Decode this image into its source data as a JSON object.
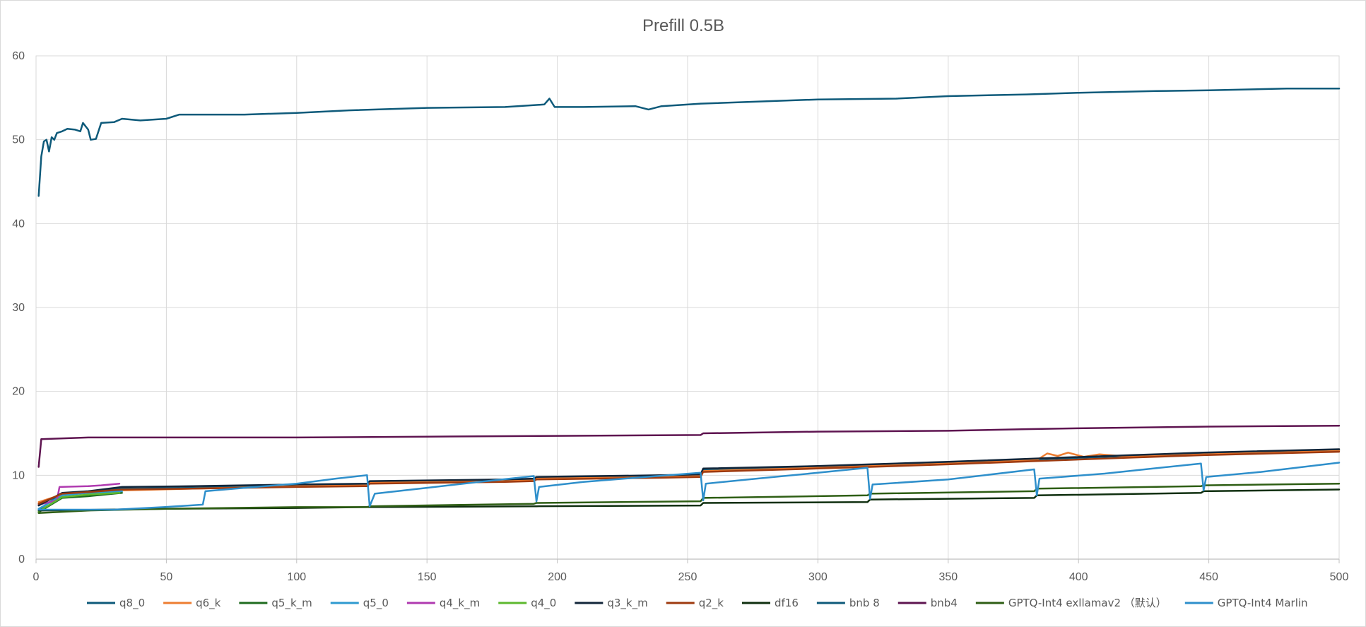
{
  "chart_data": {
    "type": "line",
    "title": "Prefill 0.5B",
    "xlabel": "",
    "ylabel": "",
    "xlim": [
      0,
      500
    ],
    "ylim": [
      0,
      60
    ],
    "x_ticks": [
      0,
      50,
      100,
      150,
      200,
      250,
      300,
      350,
      400,
      450,
      500
    ],
    "y_ticks": [
      0,
      10,
      20,
      30,
      40,
      50,
      60
    ],
    "grid": true,
    "legend_position": "bottom",
    "series": [
      {
        "name": "q8_0",
        "color": "#0E5A7A",
        "points": [
          [
            1,
            5.9
          ],
          [
            10,
            7.8
          ],
          [
            20,
            8.0
          ],
          [
            33,
            8.4
          ],
          [
            60,
            8.5
          ],
          [
            100,
            8.8
          ],
          [
            127,
            8.9
          ],
          [
            128,
            9.2
          ],
          [
            180,
            9.4
          ],
          [
            191,
            9.5
          ],
          [
            192,
            9.7
          ],
          [
            240,
            9.9
          ],
          [
            255,
            10.0
          ],
          [
            256,
            10.6
          ],
          [
            300,
            11.0
          ],
          [
            320,
            11.2
          ],
          [
            350,
            11.5
          ],
          [
            384,
            11.9
          ],
          [
            420,
            12.3
          ],
          [
            448,
            12.6
          ],
          [
            500,
            13.0
          ]
        ]
      },
      {
        "name": "q6_k",
        "color": "#ED7D31",
        "points": [
          [
            1,
            6.8
          ],
          [
            10,
            7.7
          ],
          [
            20,
            7.9
          ],
          [
            33,
            8.2
          ],
          [
            60,
            8.4
          ],
          [
            100,
            8.7
          ],
          [
            127,
            8.8
          ],
          [
            128,
            9.1
          ],
          [
            180,
            9.3
          ],
          [
            191,
            9.4
          ],
          [
            192,
            9.6
          ],
          [
            240,
            9.8
          ],
          [
            255,
            9.9
          ],
          [
            256,
            10.5
          ],
          [
            300,
            10.9
          ],
          [
            320,
            11.1
          ],
          [
            350,
            11.4
          ],
          [
            384,
            11.8
          ],
          [
            388,
            12.6
          ],
          [
            392,
            12.3
          ],
          [
            396,
            12.7
          ],
          [
            402,
            12.2
          ],
          [
            408,
            12.5
          ],
          [
            420,
            12.2
          ],
          [
            448,
            12.5
          ],
          [
            500,
            12.9
          ]
        ]
      },
      {
        "name": "q5_k_m",
        "color": "#1E6B1E",
        "points": [
          [
            1,
            5.6
          ],
          [
            10,
            7.3
          ],
          [
            20,
            7.5
          ],
          [
            33,
            7.9
          ]
        ]
      },
      {
        "name": "q5_0",
        "color": "#2E9AD0",
        "points": [
          [
            1,
            6.0
          ],
          [
            10,
            7.6
          ],
          [
            20,
            7.9
          ],
          [
            33,
            8.1
          ]
        ]
      },
      {
        "name": "q4_k_m",
        "color": "#B03AB0",
        "points": [
          [
            1,
            6.5
          ],
          [
            8,
            7.0
          ],
          [
            9,
            8.6
          ],
          [
            20,
            8.7
          ],
          [
            25,
            8.8
          ],
          [
            32,
            9.0
          ]
        ]
      },
      {
        "name": "q4_0",
        "color": "#5DB82E",
        "points": [
          [
            1,
            5.7
          ],
          [
            10,
            7.4
          ],
          [
            20,
            7.7
          ],
          [
            32,
            7.9
          ]
        ]
      },
      {
        "name": "q3_k_m",
        "color": "#12263A",
        "points": [
          [
            1,
            6.4
          ],
          [
            10,
            7.9
          ],
          [
            20,
            8.1
          ],
          [
            33,
            8.6
          ],
          [
            60,
            8.7
          ],
          [
            100,
            8.9
          ],
          [
            127,
            9.0
          ],
          [
            128,
            9.3
          ],
          [
            180,
            9.5
          ],
          [
            191,
            9.6
          ],
          [
            192,
            9.8
          ],
          [
            240,
            10.0
          ],
          [
            255,
            10.1
          ],
          [
            256,
            10.8
          ],
          [
            300,
            11.1
          ],
          [
            320,
            11.3
          ],
          [
            350,
            11.6
          ],
          [
            384,
            12.0
          ],
          [
            420,
            12.4
          ],
          [
            448,
            12.7
          ],
          [
            500,
            13.1
          ]
        ]
      },
      {
        "name": "q2_k",
        "color": "#9E3A0F",
        "points": [
          [
            1,
            6.6
          ],
          [
            10,
            7.8
          ],
          [
            20,
            8.0
          ],
          [
            33,
            8.3
          ],
          [
            60,
            8.4
          ],
          [
            100,
            8.6
          ],
          [
            127,
            8.7
          ],
          [
            128,
            9.0
          ],
          [
            180,
            9.2
          ],
          [
            191,
            9.3
          ],
          [
            192,
            9.5
          ],
          [
            240,
            9.7
          ],
          [
            255,
            9.8
          ],
          [
            256,
            10.4
          ],
          [
            300,
            10.8
          ],
          [
            320,
            11.0
          ],
          [
            350,
            11.3
          ],
          [
            384,
            11.7
          ],
          [
            420,
            12.1
          ],
          [
            448,
            12.4
          ],
          [
            500,
            12.8
          ]
        ]
      },
      {
        "name": "df16",
        "color": "#0F2F0F",
        "points": [
          [
            1,
            5.8
          ],
          [
            50,
            6.0
          ],
          [
            100,
            6.1
          ],
          [
            127,
            6.2
          ],
          [
            128,
            6.2
          ],
          [
            191,
            6.3
          ],
          [
            192,
            6.3
          ],
          [
            255,
            6.4
          ],
          [
            256,
            6.7
          ],
          [
            319,
            6.8
          ],
          [
            320,
            7.1
          ],
          [
            383,
            7.3
          ],
          [
            384,
            7.6
          ],
          [
            447,
            7.9
          ],
          [
            448,
            8.1
          ],
          [
            500,
            8.3
          ]
        ]
      },
      {
        "name": "bnb 8",
        "color": "#0E5A7A",
        "points": [
          [
            1,
            43.3
          ],
          [
            2,
            48.0
          ],
          [
            3,
            49.8
          ],
          [
            4,
            50.0
          ],
          [
            5,
            48.6
          ],
          [
            6,
            50.3
          ],
          [
            7,
            50.0
          ],
          [
            8,
            50.8
          ],
          [
            10,
            51.0
          ],
          [
            12,
            51.3
          ],
          [
            15,
            51.2
          ],
          [
            17,
            51.0
          ],
          [
            18,
            52.0
          ],
          [
            20,
            51.2
          ],
          [
            21,
            50.0
          ],
          [
            23,
            50.1
          ],
          [
            25,
            52.0
          ],
          [
            30,
            52.1
          ],
          [
            33,
            52.5
          ],
          [
            40,
            52.3
          ],
          [
            50,
            52.5
          ],
          [
            55,
            53.0
          ],
          [
            80,
            53.0
          ],
          [
            100,
            53.2
          ],
          [
            120,
            53.5
          ],
          [
            150,
            53.8
          ],
          [
            180,
            53.9
          ],
          [
            195,
            54.2
          ],
          [
            197,
            54.9
          ],
          [
            199,
            53.9
          ],
          [
            210,
            53.9
          ],
          [
            230,
            54.0
          ],
          [
            235,
            53.6
          ],
          [
            240,
            54.0
          ],
          [
            255,
            54.3
          ],
          [
            300,
            54.8
          ],
          [
            330,
            54.9
          ],
          [
            350,
            55.2
          ],
          [
            380,
            55.4
          ],
          [
            400,
            55.6
          ],
          [
            430,
            55.8
          ],
          [
            450,
            55.9
          ],
          [
            480,
            56.1
          ],
          [
            500,
            56.1
          ]
        ]
      },
      {
        "name": "bnb4",
        "color": "#5E1450",
        "points": [
          [
            1,
            11.0
          ],
          [
            2,
            14.3
          ],
          [
            20,
            14.5
          ],
          [
            50,
            14.5
          ],
          [
            100,
            14.5
          ],
          [
            150,
            14.6
          ],
          [
            200,
            14.7
          ],
          [
            255,
            14.8
          ],
          [
            256,
            15.0
          ],
          [
            300,
            15.2
          ],
          [
            350,
            15.3
          ],
          [
            380,
            15.5
          ],
          [
            400,
            15.6
          ],
          [
            450,
            15.8
          ],
          [
            500,
            15.9
          ]
        ]
      },
      {
        "name": "GPTQ-Int4 exllamav2 （默认）",
        "color": "#2E5E14",
        "points": [
          [
            1,
            5.5
          ],
          [
            20,
            5.8
          ],
          [
            50,
            6.0
          ],
          [
            100,
            6.2
          ],
          [
            127,
            6.2
          ],
          [
            128,
            6.3
          ],
          [
            191,
            6.6
          ],
          [
            192,
            6.7
          ],
          [
            255,
            6.9
          ],
          [
            256,
            7.3
          ],
          [
            319,
            7.6
          ],
          [
            320,
            7.8
          ],
          [
            383,
            8.1
          ],
          [
            384,
            8.4
          ],
          [
            447,
            8.7
          ],
          [
            448,
            8.8
          ],
          [
            500,
            9.0
          ]
        ]
      },
      {
        "name": "GPTQ-Int4 Marlin",
        "color": "#2E8FCB",
        "points": [
          [
            1,
            5.9
          ],
          [
            30,
            5.9
          ],
          [
            49,
            6.2
          ],
          [
            64,
            6.5
          ],
          [
            65,
            8.1
          ],
          [
            80,
            8.5
          ],
          [
            100,
            9.0
          ],
          [
            115,
            9.6
          ],
          [
            127,
            10.0
          ],
          [
            128,
            6.3
          ],
          [
            130,
            7.8
          ],
          [
            150,
            8.5
          ],
          [
            170,
            9.2
          ],
          [
            191,
            9.9
          ],
          [
            192,
            6.9
          ],
          [
            193,
            8.6
          ],
          [
            210,
            9.2
          ],
          [
            230,
            9.7
          ],
          [
            255,
            10.3
          ],
          [
            256,
            7.0
          ],
          [
            257,
            9.0
          ],
          [
            280,
            9.7
          ],
          [
            300,
            10.3
          ],
          [
            319,
            10.9
          ],
          [
            320,
            7.2
          ],
          [
            321,
            8.9
          ],
          [
            350,
            9.5
          ],
          [
            383,
            10.7
          ],
          [
            384,
            7.6
          ],
          [
            385,
            9.6
          ],
          [
            410,
            10.2
          ],
          [
            447,
            11.4
          ],
          [
            448,
            8.2
          ],
          [
            449,
            9.8
          ],
          [
            470,
            10.4
          ],
          [
            500,
            11.5
          ]
        ]
      }
    ]
  }
}
